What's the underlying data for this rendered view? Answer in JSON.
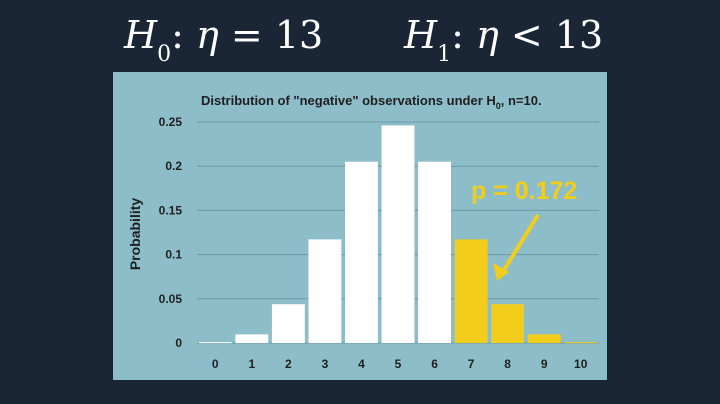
{
  "hypotheses": {
    "h0": {
      "symbol": "H",
      "subscript": "0",
      "param": "η",
      "relation": "=",
      "value": "13"
    },
    "h1": {
      "symbol": "H",
      "subscript": "1",
      "param": "η",
      "relation": "<",
      "value": "13"
    }
  },
  "colors": {
    "background": "#1a2535",
    "panel": "#8cbdc9",
    "bar_default": "#ffffff",
    "bar_highlight": "#f2cd1c",
    "gridline": "#6e9aa6"
  },
  "chart_data": {
    "type": "bar",
    "title_main": "Distribution of \"negative\" observations under H",
    "title_sub": "0",
    "title_tail": ", n=10.",
    "xlabel": "",
    "ylabel": "Probability",
    "categories": [
      "0",
      "1",
      "2",
      "3",
      "4",
      "5",
      "6",
      "7",
      "8",
      "9",
      "10"
    ],
    "values": [
      0.001,
      0.0098,
      0.0439,
      0.1172,
      0.2051,
      0.2461,
      0.2051,
      0.1172,
      0.0439,
      0.0098,
      0.001
    ],
    "highlighted": [
      false,
      false,
      false,
      false,
      false,
      false,
      false,
      true,
      true,
      true,
      true
    ],
    "ylim": [
      0,
      0.25
    ],
    "yticks": [
      "0",
      "0.05",
      "0.1",
      "0.15",
      "0.2",
      "0.25"
    ],
    "yticks_values": [
      0,
      0.05,
      0.1,
      0.15,
      0.2,
      0.25
    ],
    "grid": true,
    "annotation": {
      "text": "p = 0.172",
      "arrow_points_to": "8"
    }
  }
}
